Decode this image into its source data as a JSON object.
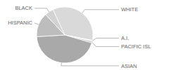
{
  "chart_data": {
    "type": "pie",
    "categories": [
      "WHITE",
      "A.I.",
      "PACIFIC ISL",
      "ASIAN",
      "HISPANIC",
      "BLACK"
    ],
    "values": [
      35,
      0.5,
      1,
      44.5,
      14,
      5
    ],
    "colors": [
      "#d9d9d9",
      "#ececec",
      "#c6c6c6",
      "#a9a9a9",
      "#bdbdbd",
      "#d2d2d2"
    ]
  }
}
